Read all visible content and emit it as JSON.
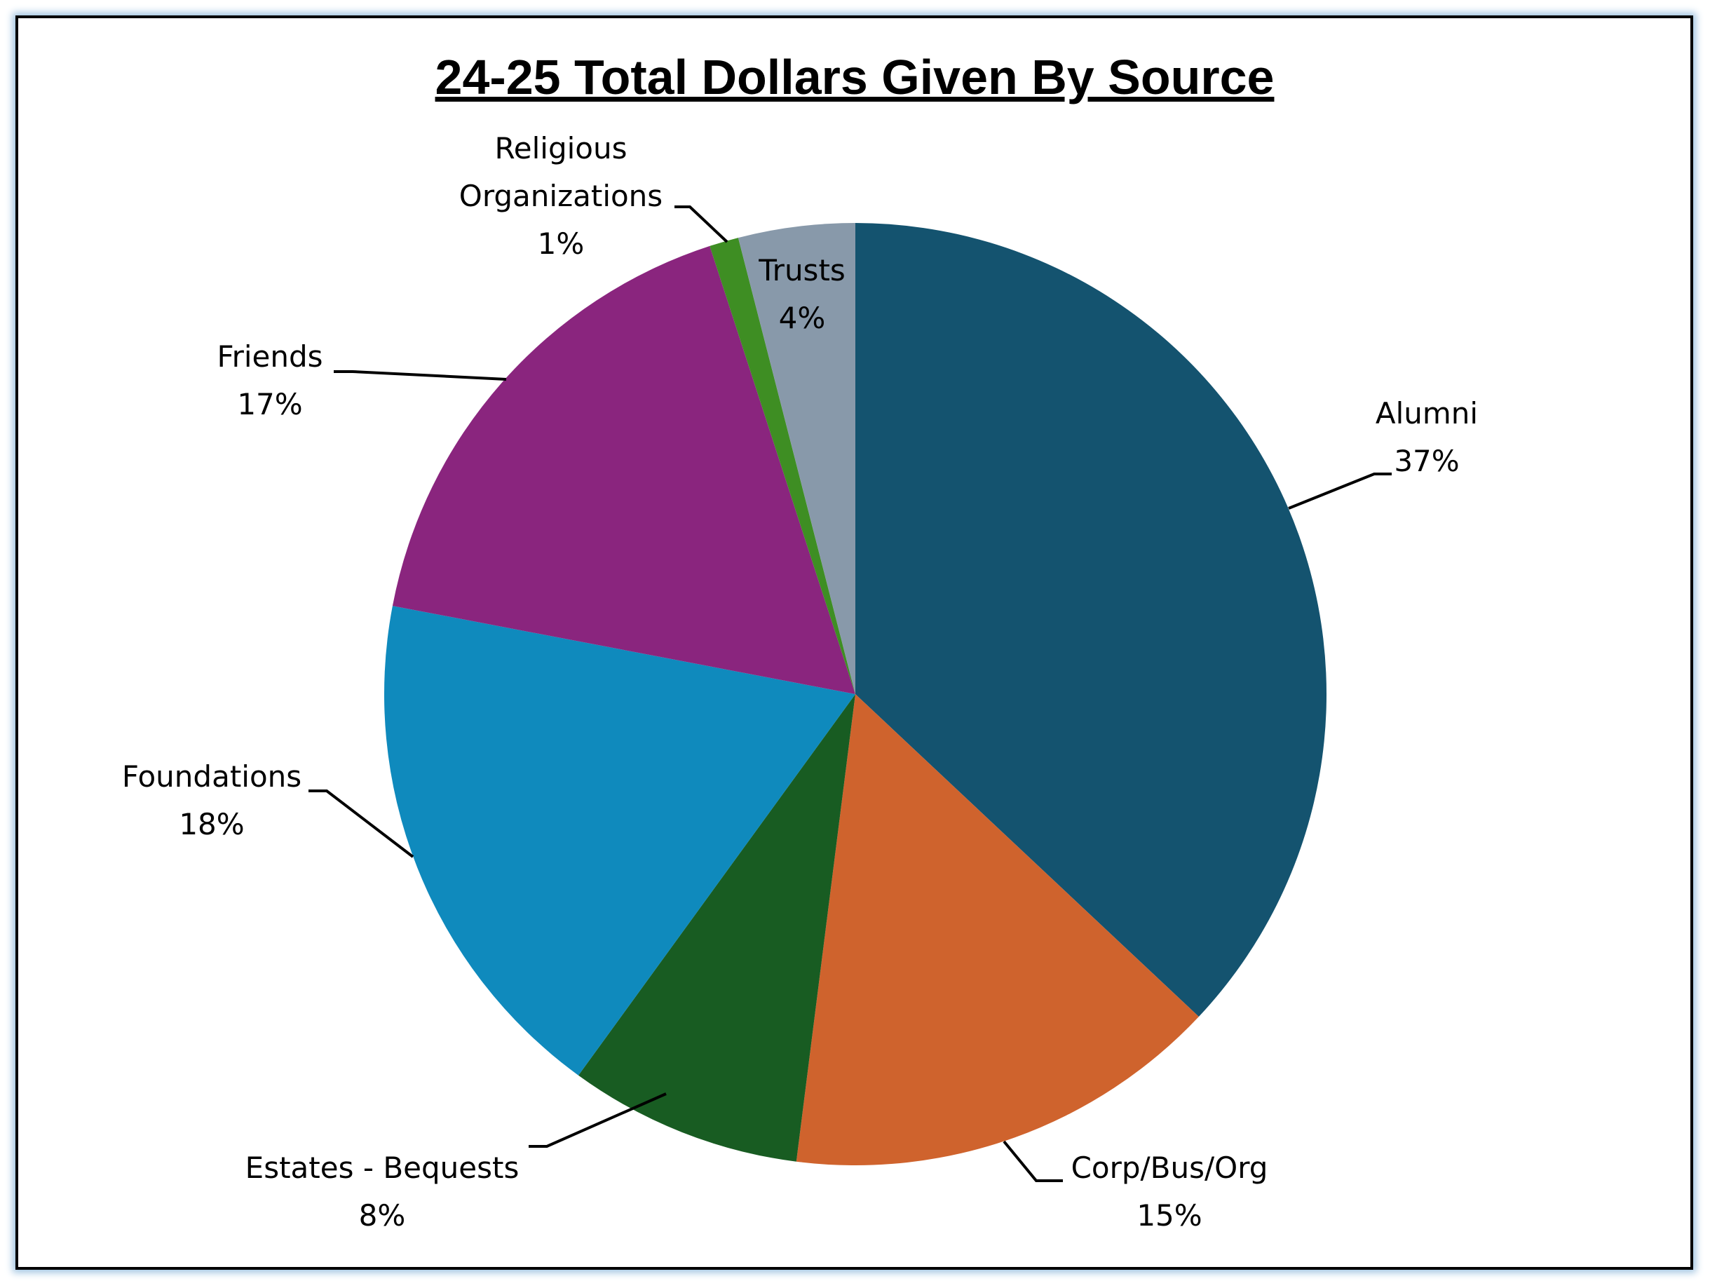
{
  "chart_data": {
    "type": "pie",
    "title": "24-25 Total Dollars Given By Source",
    "slices": [
      {
        "name": "Alumni",
        "value": 37,
        "label": "37%",
        "color": "#14536F"
      },
      {
        "name": "Corp/Bus/Org",
        "value": 15,
        "label": "15%",
        "color": "#CF632D"
      },
      {
        "name": "Estates - Bequests",
        "value": 8,
        "label": "8%",
        "color": "#185C22"
      },
      {
        "name": "Foundations",
        "value": 18,
        "label": "18%",
        "color": "#0F8ABD"
      },
      {
        "name": "Friends",
        "value": 17,
        "label": "17%",
        "color": "#8A257E"
      },
      {
        "name": "Religious Organizations",
        "value": 1,
        "label": "1%",
        "color": "#3E8E23"
      },
      {
        "name": "Trusts",
        "value": 4,
        "label": "4%",
        "color": "#8899AA"
      }
    ],
    "legend": "none",
    "data_labels": "category name and percentage, outside with leader lines"
  }
}
